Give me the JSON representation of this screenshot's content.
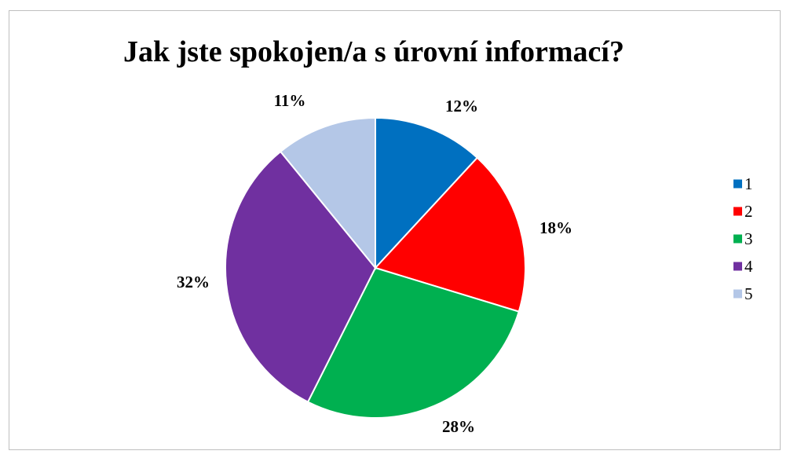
{
  "chart_data": {
    "type": "pie",
    "title": "Jak jste spokojen/a s úrovní informací?",
    "categories": [
      "1",
      "2",
      "3",
      "4",
      "5"
    ],
    "values": [
      12,
      18,
      28,
      32,
      11
    ],
    "labels": [
      "12%",
      "18%",
      "28%",
      "32%",
      "11%"
    ],
    "colors": [
      "#0070c0",
      "#ff0000",
      "#00b050",
      "#7030a0",
      "#b4c7e7"
    ],
    "legend_position": "right"
  }
}
